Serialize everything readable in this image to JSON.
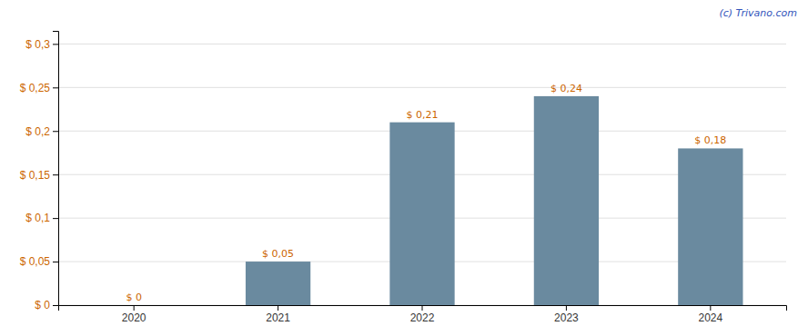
{
  "chart_data": {
    "type": "bar",
    "categories": [
      "2020",
      "2021",
      "2022",
      "2023",
      "2024"
    ],
    "values": [
      0.0,
      0.05,
      0.21,
      0.24,
      0.18
    ],
    "value_labels": [
      "$ 0",
      "$ 0,05",
      "$ 0,21",
      "$ 0,24",
      "$ 0,18"
    ],
    "data_labels": true,
    "color": "#6a8a9f",
    "ylim": [
      0,
      0.315
    ],
    "yticks": [
      {
        "value": 0.0,
        "label": "$ 0"
      },
      {
        "value": 0.05,
        "label": "$ 0,05"
      },
      {
        "value": 0.1,
        "label": "$ 0,1"
      },
      {
        "value": 0.15,
        "label": "$ 0,15"
      },
      {
        "value": 0.2,
        "label": "$ 0,2"
      },
      {
        "value": 0.25,
        "label": "$ 0,25"
      },
      {
        "value": 0.3,
        "label": "$ 0,3"
      }
    ],
    "grid": true,
    "annotations": [
      "(c) Trivano.com"
    ]
  }
}
